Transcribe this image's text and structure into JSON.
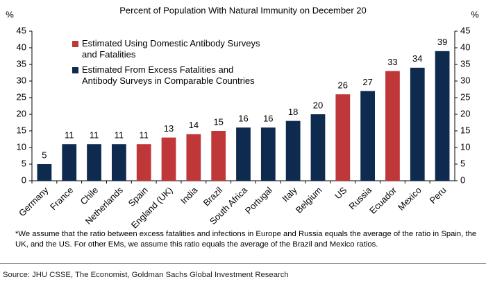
{
  "chart_data": {
    "type": "bar",
    "title": "Percent of Population With Natural Immunity on December 20",
    "y_label": "%",
    "y2_label": "%",
    "categories": [
      "Germany",
      "France",
      "Chile",
      "Netherlands",
      "Spain",
      "England (UK)",
      "India",
      "Brazil",
      "South Africa",
      "Portugal",
      "Italy",
      "Belgium",
      "US",
      "Russia",
      "Ecuador",
      "Mexico",
      "Peru"
    ],
    "series": [
      {
        "name": "Estimated Using Domestic Antibody Surveys and Fatalities",
        "color": "#c0373a",
        "values": [
          null,
          null,
          null,
          null,
          11,
          13,
          14,
          15,
          null,
          null,
          null,
          null,
          26,
          null,
          33,
          null,
          null
        ]
      },
      {
        "name": "Estimated From Excess Fatalities and Antibody Surveys in Comparable Countries",
        "color": "#0e2a4e",
        "values": [
          5,
          11,
          11,
          11,
          null,
          null,
          null,
          null,
          16,
          16,
          18,
          20,
          null,
          27,
          null,
          34,
          39
        ]
      }
    ],
    "ylim": [
      0,
      45
    ],
    "yticks": [
      0,
      5,
      10,
      15,
      20,
      25,
      30,
      35,
      40,
      45
    ],
    "y2lim": [
      0,
      45
    ],
    "y2ticks": [
      0,
      5,
      10,
      15,
      20,
      25,
      30,
      35,
      40,
      45
    ],
    "grid": false,
    "footnote": "*We assume that the ratio between excess fatalities and infections in Europe and Russia equals the average of the ratio in Spain, the UK, and the US.  For other EMs, we assume this ratio equals the average of the Brazil and Mexico ratios.",
    "source": "Source: JHU CSSE, The Economist, Goldman Sachs Global Investment Research"
  }
}
